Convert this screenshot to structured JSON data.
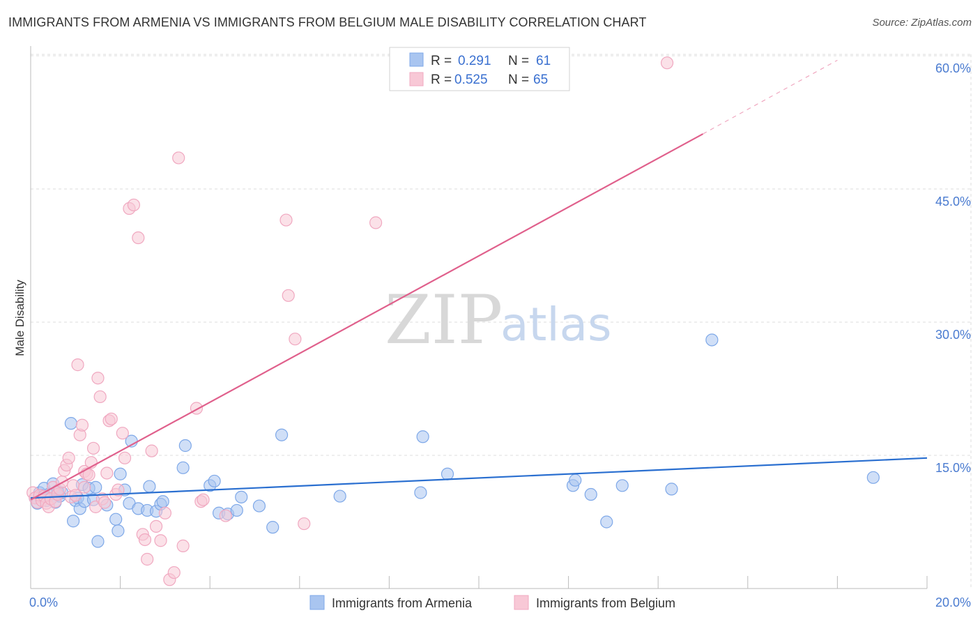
{
  "title": "IMMIGRANTS FROM ARMENIA VS IMMIGRANTS FROM BELGIUM MALE DISABILITY CORRELATION CHART",
  "source": "Source: ZipAtlas.com",
  "watermark": {
    "zip": "ZIP",
    "atlas": "atlas"
  },
  "chart_data": {
    "type": "scatter",
    "title": "IMMIGRANTS FROM ARMENIA VS IMMIGRANTS FROM BELGIUM MALE DISABILITY CORRELATION CHART",
    "xlabel": "",
    "ylabel": "Male Disability",
    "xlim": [
      0,
      20
    ],
    "ylim": [
      0,
      60
    ],
    "x_ticks": [
      {
        "value": 0,
        "label": "0.0%"
      },
      {
        "value": 20,
        "label": "20.0%"
      }
    ],
    "y_ticks": [
      {
        "value": 15,
        "label": "15.0%"
      },
      {
        "value": 30,
        "label": "30.0%"
      },
      {
        "value": 45,
        "label": "45.0%"
      },
      {
        "value": 60,
        "label": "60.0%"
      }
    ],
    "grid": true,
    "legend_position": "top-center",
    "series": [
      {
        "name": "Immigrants from Armenia",
        "color": "#7ea8e8",
        "fill": "#a9c5f0",
        "line_color": "#2a6fd0",
        "R": "0.291",
        "N": "61",
        "r_label": "R =",
        "n_label": "N =",
        "trend": {
          "x0": 0,
          "y0": 10.2,
          "x1": 20,
          "y1": 14.7
        },
        "points": [
          [
            0.1,
            10.2
          ],
          [
            0.15,
            9.6
          ],
          [
            0.2,
            10.8
          ],
          [
            0.25,
            10.5
          ],
          [
            0.3,
            11.3
          ],
          [
            0.35,
            9.9
          ],
          [
            0.4,
            10.6
          ],
          [
            0.45,
            10.1
          ],
          [
            0.5,
            11.8
          ],
          [
            0.55,
            9.7
          ],
          [
            0.6,
            10.9
          ],
          [
            0.65,
            10.4
          ],
          [
            0.7,
            10.8
          ],
          [
            0.9,
            18.6
          ],
          [
            0.95,
            7.6
          ],
          [
            1.0,
            9.9
          ],
          [
            1.05,
            10.2
          ],
          [
            1.1,
            9.0
          ],
          [
            1.15,
            11.7
          ],
          [
            1.2,
            9.8
          ],
          [
            1.3,
            11.3
          ],
          [
            1.4,
            10.0
          ],
          [
            1.45,
            11.4
          ],
          [
            1.5,
            5.3
          ],
          [
            1.7,
            9.4
          ],
          [
            1.9,
            7.8
          ],
          [
            1.95,
            6.5
          ],
          [
            2.0,
            12.9
          ],
          [
            2.1,
            11.1
          ],
          [
            2.2,
            9.6
          ],
          [
            2.25,
            16.6
          ],
          [
            2.4,
            9.0
          ],
          [
            2.6,
            8.8
          ],
          [
            2.65,
            11.5
          ],
          [
            2.8,
            8.7
          ],
          [
            2.9,
            9.5
          ],
          [
            2.95,
            9.8
          ],
          [
            3.4,
            13.6
          ],
          [
            3.45,
            16.1
          ],
          [
            4.0,
            11.6
          ],
          [
            4.1,
            12.1
          ],
          [
            4.2,
            8.5
          ],
          [
            4.4,
            8.4
          ],
          [
            4.6,
            8.8
          ],
          [
            4.7,
            10.3
          ],
          [
            5.1,
            9.3
          ],
          [
            5.4,
            6.9
          ],
          [
            5.6,
            17.3
          ],
          [
            6.9,
            10.4
          ],
          [
            8.7,
            10.8
          ],
          [
            8.75,
            17.1
          ],
          [
            9.3,
            12.9
          ],
          [
            12.1,
            11.6
          ],
          [
            12.15,
            12.2
          ],
          [
            12.5,
            10.6
          ],
          [
            12.85,
            7.5
          ],
          [
            13.2,
            11.6
          ],
          [
            14.3,
            11.2
          ],
          [
            15.2,
            28.0
          ],
          [
            18.8,
            12.5
          ],
          [
            0.6,
            11.0
          ]
        ]
      },
      {
        "name": "Immigrants from Belgium",
        "color": "#f0a8c0",
        "fill": "#f8c8d6",
        "line_color": "#e0608c",
        "R": "0.525",
        "N": "65",
        "r_label": "R =",
        "n_label": "N =",
        "trend": {
          "x0": 0,
          "y0": 10.0,
          "x1": 15.0,
          "y1": 51.2
        },
        "trend_dashed": {
          "x0": 15.0,
          "y0": 51.2,
          "x1": 18.0,
          "y1": 59.5
        },
        "points": [
          [
            0.05,
            10.8
          ],
          [
            0.1,
            10.2
          ],
          [
            0.15,
            9.7
          ],
          [
            0.2,
            10.5
          ],
          [
            0.25,
            9.9
          ],
          [
            0.3,
            10.4
          ],
          [
            0.35,
            9.6
          ],
          [
            0.4,
            9.2
          ],
          [
            0.45,
            10.1
          ],
          [
            0.5,
            11.4
          ],
          [
            0.55,
            9.8
          ],
          [
            0.6,
            10.6
          ],
          [
            0.65,
            11.2
          ],
          [
            0.7,
            12.0
          ],
          [
            0.75,
            13.3
          ],
          [
            0.8,
            13.9
          ],
          [
            0.85,
            14.7
          ],
          [
            0.9,
            10.3
          ],
          [
            0.95,
            11.6
          ],
          [
            1.0,
            10.5
          ],
          [
            1.05,
            25.2
          ],
          [
            1.1,
            17.3
          ],
          [
            1.15,
            18.4
          ],
          [
            1.2,
            13.2
          ],
          [
            1.25,
            12.9
          ],
          [
            1.3,
            12.8
          ],
          [
            1.35,
            14.2
          ],
          [
            1.4,
            15.8
          ],
          [
            1.45,
            9.2
          ],
          [
            1.5,
            23.7
          ],
          [
            1.55,
            21.6
          ],
          [
            1.6,
            10.1
          ],
          [
            1.65,
            9.7
          ],
          [
            1.7,
            13.0
          ],
          [
            1.75,
            18.9
          ],
          [
            1.8,
            19.1
          ],
          [
            1.9,
            10.6
          ],
          [
            1.95,
            11.1
          ],
          [
            2.05,
            17.5
          ],
          [
            2.1,
            14.7
          ],
          [
            2.2,
            42.8
          ],
          [
            2.3,
            43.2
          ],
          [
            2.4,
            39.5
          ],
          [
            2.5,
            6.1
          ],
          [
            2.55,
            5.5
          ],
          [
            2.6,
            3.3
          ],
          [
            2.7,
            15.5
          ],
          [
            2.8,
            7.0
          ],
          [
            2.9,
            5.4
          ],
          [
            3.0,
            8.5
          ],
          [
            3.1,
            1.0
          ],
          [
            3.2,
            1.8
          ],
          [
            3.3,
            48.5
          ],
          [
            3.4,
            4.8
          ],
          [
            3.7,
            20.3
          ],
          [
            3.8,
            9.8
          ],
          [
            3.85,
            10.0
          ],
          [
            4.35,
            8.2
          ],
          [
            5.7,
            41.5
          ],
          [
            5.75,
            33.0
          ],
          [
            5.9,
            28.1
          ],
          [
            6.1,
            7.3
          ],
          [
            7.7,
            41.2
          ],
          [
            14.2,
            59.2
          ],
          [
            1.2,
            11.4
          ]
        ]
      }
    ]
  }
}
